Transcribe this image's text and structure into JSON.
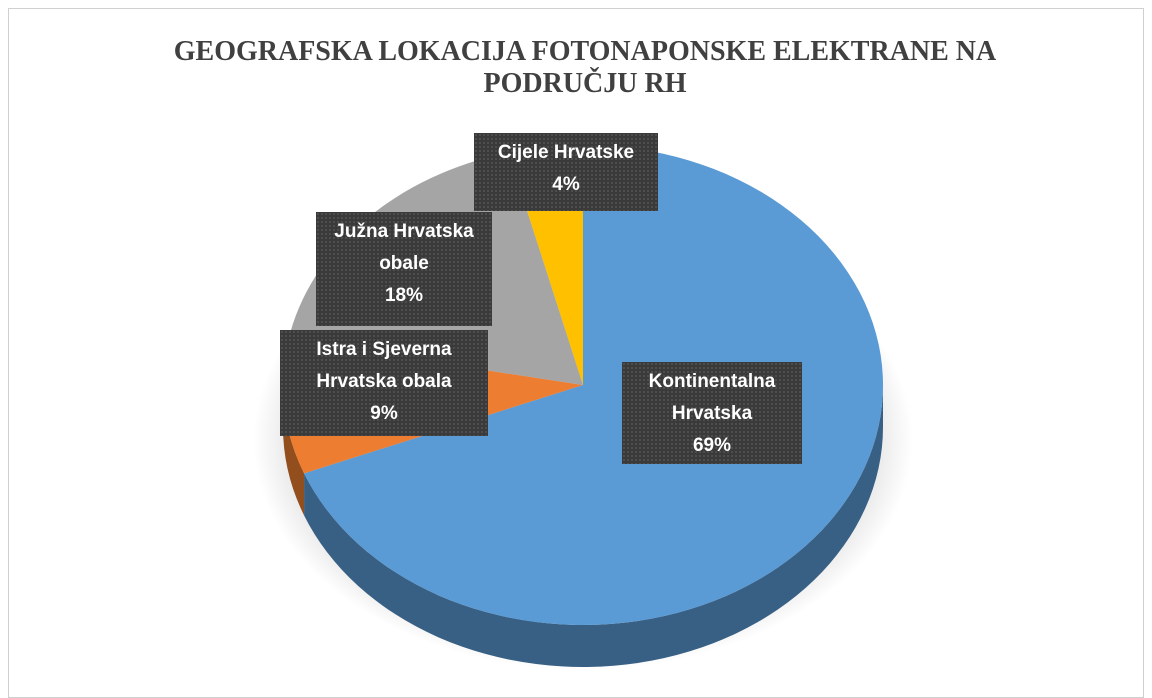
{
  "chart_data": {
    "type": "pie",
    "title": "GEOGRAFSKA LOKACIJA FOTONAPONSKE ELEKTRANE NA PODRUČJU RH",
    "categories": [
      "Kontinentalna Hrvatska",
      "Istra i Sjeverna Hrvatska obala",
      "Južna Hrvatska obale",
      "Cijele Hrvatske"
    ],
    "values": [
      69,
      9,
      18,
      4
    ],
    "value_labels": [
      "69%",
      "9%",
      "18%",
      "4%"
    ],
    "colors": [
      "#5b9bd5",
      "#ed7d31",
      "#a5a5a5",
      "#ffc000"
    ]
  }
}
